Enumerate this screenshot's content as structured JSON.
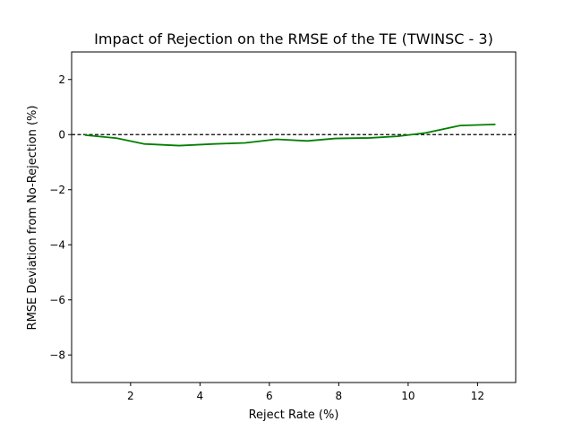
{
  "chart_data": {
    "type": "line",
    "title": "Impact of Rejection on the RMSE of the TE (TWINSC - 3)",
    "xlabel": "Reject Rate (%)",
    "ylabel": "RMSE Deviation from No-Rejection (%)",
    "xlim": [
      0.3,
      13.1
    ],
    "ylim": [
      -9,
      3
    ],
    "xticks": [
      2,
      4,
      6,
      8,
      10,
      12
    ],
    "yticks": [
      -8,
      -6,
      -4,
      -2,
      0,
      2
    ],
    "xtick_labels": [
      "2",
      "4",
      "6",
      "8",
      "10",
      "12"
    ],
    "ytick_labels": [
      "−8",
      "−6",
      "−4",
      "−2",
      "0",
      "2"
    ],
    "grid": false,
    "reference_line": {
      "y": 0,
      "style": "dashed",
      "color": "#000000"
    },
    "series": [
      {
        "color": "#008000",
        "x": [
          0.7,
          1.6,
          2.4,
          3.4,
          4.4,
          5.3,
          6.2,
          7.1,
          7.9,
          8.9,
          9.7,
          10.5,
          11.5,
          12.5
        ],
        "y": [
          -0.02,
          -0.13,
          -0.34,
          -0.4,
          -0.34,
          -0.3,
          -0.17,
          -0.23,
          -0.14,
          -0.12,
          -0.06,
          0.06,
          0.33,
          0.37
        ]
      }
    ]
  }
}
